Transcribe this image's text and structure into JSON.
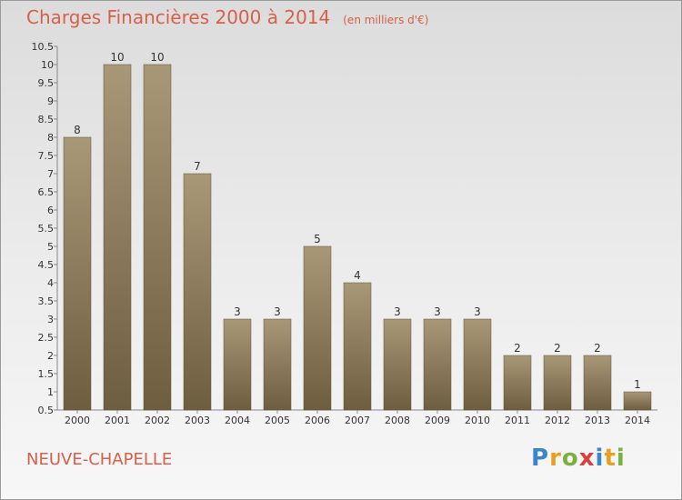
{
  "header": {
    "title": "Charges Financières 2000 à 2014",
    "subtitle": "(en milliers d'€)"
  },
  "footer": {
    "commune": "NEUVE-CHAPELLE"
  },
  "logo": {
    "letters": [
      {
        "char": "P",
        "color": "#3a86c8"
      },
      {
        "char": "r",
        "color": "#e8a020"
      },
      {
        "char": "o",
        "color": "#7ab040"
      },
      {
        "char": "x",
        "color": "#d84040"
      },
      {
        "char": "i",
        "color": "#3a86c8"
      },
      {
        "char": "t",
        "color": "#e8a020"
      },
      {
        "char": "i",
        "color": "#7ab040"
      }
    ]
  },
  "colors": {
    "accent": "#d6604a",
    "bar_top": "#a89878",
    "bar_bottom": "#6e5e40"
  },
  "chart_data": {
    "type": "bar",
    "title": "Charges Financières 2000 à 2014",
    "subtitle": "(en milliers d'€)",
    "categories": [
      "2000",
      "2001",
      "2002",
      "2003",
      "2004",
      "2005",
      "2006",
      "2007",
      "2008",
      "2009",
      "2010",
      "2011",
      "2012",
      "2013",
      "2014"
    ],
    "values": [
      8,
      10,
      10,
      7,
      3,
      3,
      5,
      4,
      3,
      3,
      3,
      2,
      2,
      2,
      1
    ],
    "value_labels": [
      "8",
      "10",
      "10",
      "7",
      "3",
      "3",
      "5",
      "4",
      "3",
      "3",
      "3",
      "2",
      "2",
      "2",
      "1"
    ],
    "yticks": [
      "0.5",
      "1",
      "1.5",
      "2",
      "2.5",
      "3",
      "3.5",
      "4",
      "4.5",
      "5",
      "5.5",
      "6",
      "6.5",
      "7",
      "7.5",
      "8",
      "8.5",
      "9",
      "9.5",
      "10",
      "10.5"
    ],
    "ylim": [
      0.5,
      10.5
    ],
    "grid": false,
    "xlabel": "",
    "ylabel": ""
  }
}
